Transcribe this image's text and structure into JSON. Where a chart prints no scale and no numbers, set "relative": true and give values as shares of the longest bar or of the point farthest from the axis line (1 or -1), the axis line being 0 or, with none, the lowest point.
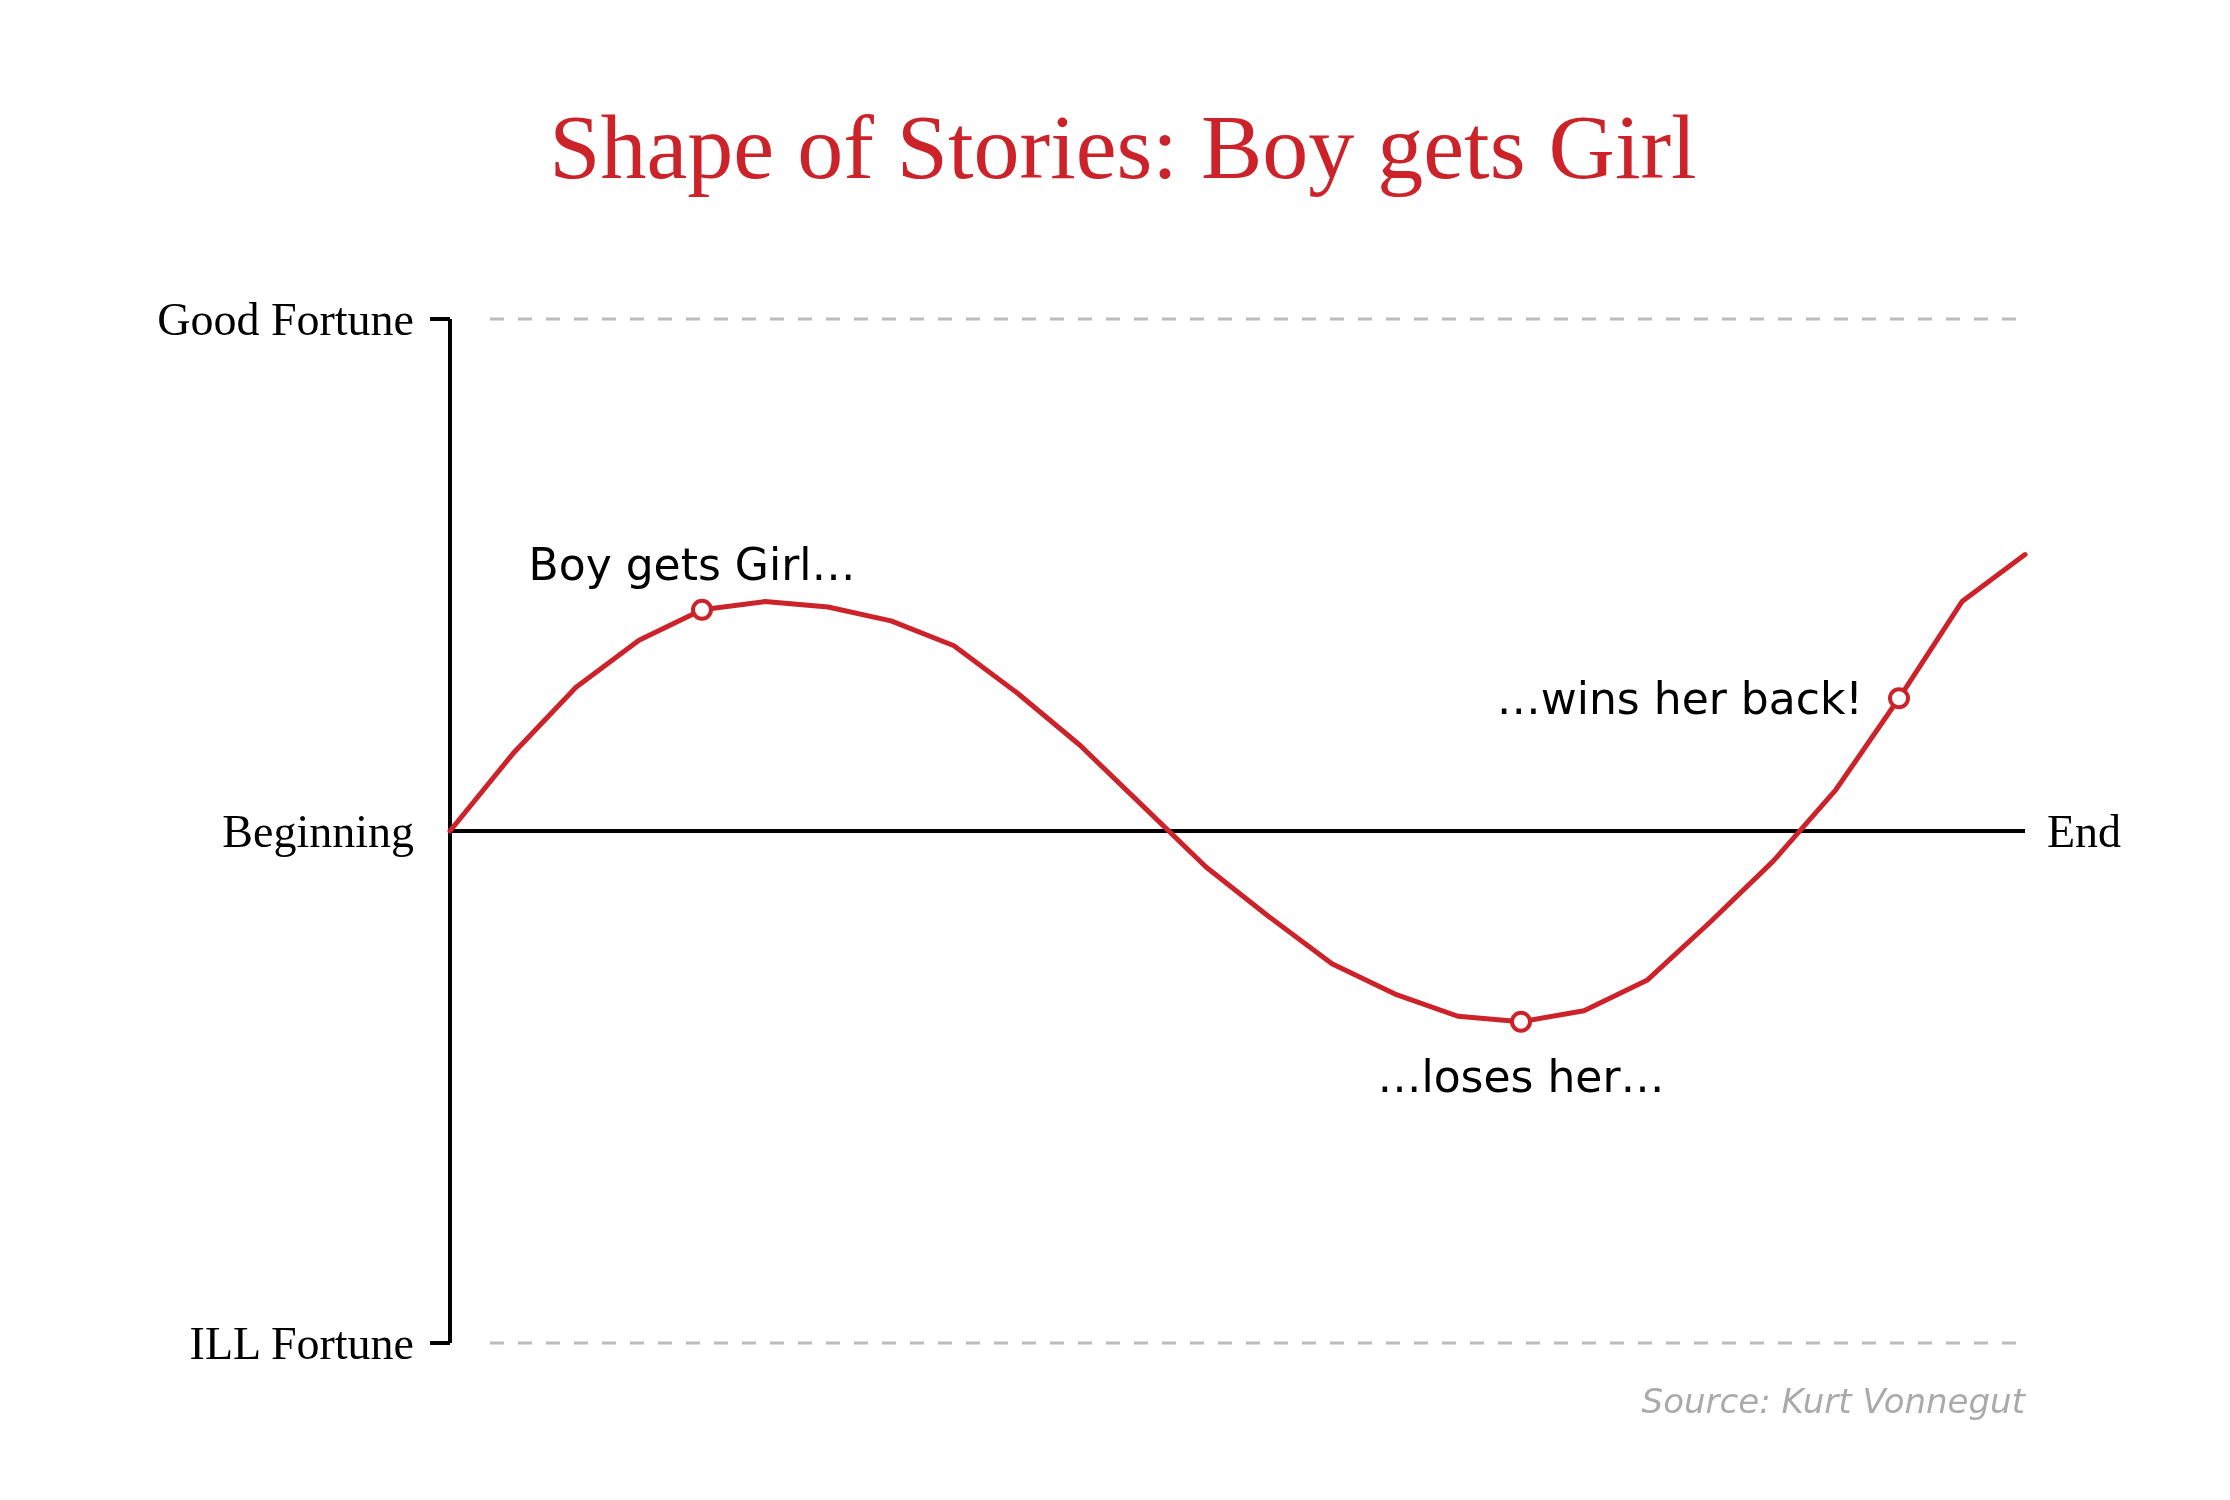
{
  "chart_data": {
    "type": "line",
    "title": "Shape of Stories: Boy gets Girl",
    "relative": true,
    "categories": [
      null,
      null,
      null,
      null,
      null,
      null,
      null,
      null,
      null,
      null,
      null,
      null,
      null,
      null,
      null,
      null,
      null,
      null,
      null,
      null,
      null,
      null,
      null,
      null,
      null,
      null
    ],
    "series": [
      {
        "color": "#cc2229",
        "values": [
          0,
          0.28,
          0.52,
          0.69,
          0.8,
          0.83,
          0.81,
          0.76,
          0.67,
          0.5,
          0.31,
          0.09,
          -0.13,
          -0.31,
          -0.48,
          -0.59,
          -0.67,
          -0.69,
          -0.65,
          -0.54,
          -0.33,
          -0.11,
          0.15,
          0.48,
          0.83,
          1
        ]
      }
    ],
    "marker": "none",
    "line_style": "solid",
    "annotations": [
      "Good Fortune",
      "Beginning",
      "ILL Fortune",
      "End",
      "Boy gets Girl…",
      "…loses her…",
      "…wins her back!",
      "Source: Kurt Vonnegut"
    ]
  }
}
